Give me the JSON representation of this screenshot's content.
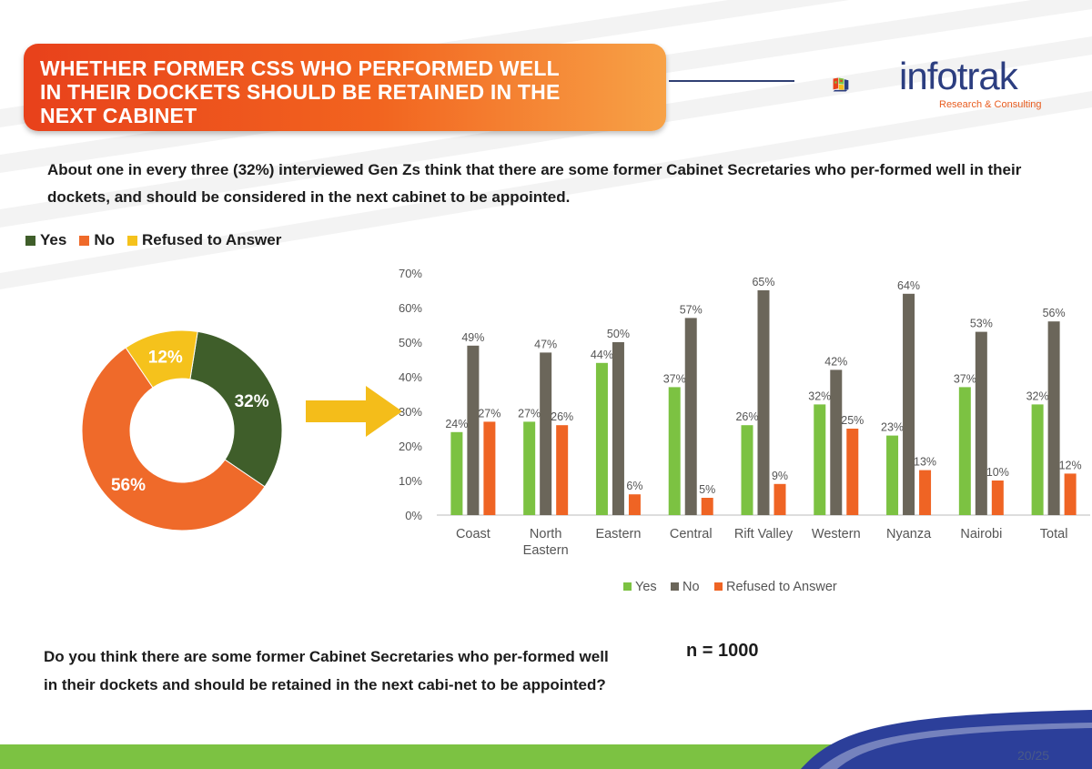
{
  "title": "WHETHER FORMER CSs WHO PERFORMED WELL IN THEIR DOCKETS SHOULD BE RETAINED IN THE NEXT CABINET",
  "logo": {
    "name": "infotrak",
    "tagline": "Research & Consulting"
  },
  "subtitle": "About one in every three (32%) interviewed Gen Zs think that there are some former Cabinet Secretaries who per-formed well in their dockets, and should be considered in the next cabinet to be appointed.",
  "question": "Do you think there are some former Cabinet Secretaries who per-formed well in their dockets and should be retained in the next cabi-net to be appointed?",
  "sample_size": "n = 1000",
  "page_number": "20/25",
  "colors": {
    "yes": "#7cc242",
    "no": "#6b665a",
    "refused": "#ef6424",
    "donut_yes": "#3f5e2a",
    "donut_no": "#ef6a2a",
    "donut_refused": "#f5c21c",
    "arrow": "#f4bd1a"
  },
  "chart_data": [
    {
      "type": "pie",
      "variant": "donut",
      "legend": [
        "Yes",
        "No",
        "Refused to Answer"
      ],
      "legend_position": "top-left",
      "slices": [
        {
          "name": "Yes",
          "value": 32,
          "label": "32%"
        },
        {
          "name": "No",
          "value": 56,
          "label": "56%"
        },
        {
          "name": "Refused to Answer",
          "value": 12,
          "label": "12%"
        }
      ]
    },
    {
      "type": "bar",
      "categories": [
        "Coast",
        "North Eastern",
        "Eastern",
        "Central",
        "Rift Valley",
        "Western",
        "Nyanza",
        "Nairobi",
        "Total"
      ],
      "category_lines": [
        [
          "Coast"
        ],
        [
          "North",
          "Eastern"
        ],
        [
          "Eastern"
        ],
        [
          "Central"
        ],
        [
          "Rift Valley"
        ],
        [
          "Western"
        ],
        [
          "Nyanza"
        ],
        [
          "Nairobi"
        ],
        [
          "Total"
        ]
      ],
      "series": [
        {
          "name": "Yes",
          "values": [
            24,
            27,
            44,
            37,
            26,
            32,
            23,
            37,
            32
          ]
        },
        {
          "name": "No",
          "values": [
            49,
            47,
            50,
            57,
            65,
            42,
            64,
            53,
            56
          ]
        },
        {
          "name": "Refused to Answer",
          "values": [
            27,
            26,
            6,
            5,
            9,
            25,
            13,
            10,
            12
          ]
        }
      ],
      "ylim": [
        0,
        70
      ],
      "yticks": [
        "0%",
        "10%",
        "20%",
        "30%",
        "40%",
        "50%",
        "60%",
        "70%"
      ],
      "legend_position": "bottom",
      "grid": false
    }
  ]
}
